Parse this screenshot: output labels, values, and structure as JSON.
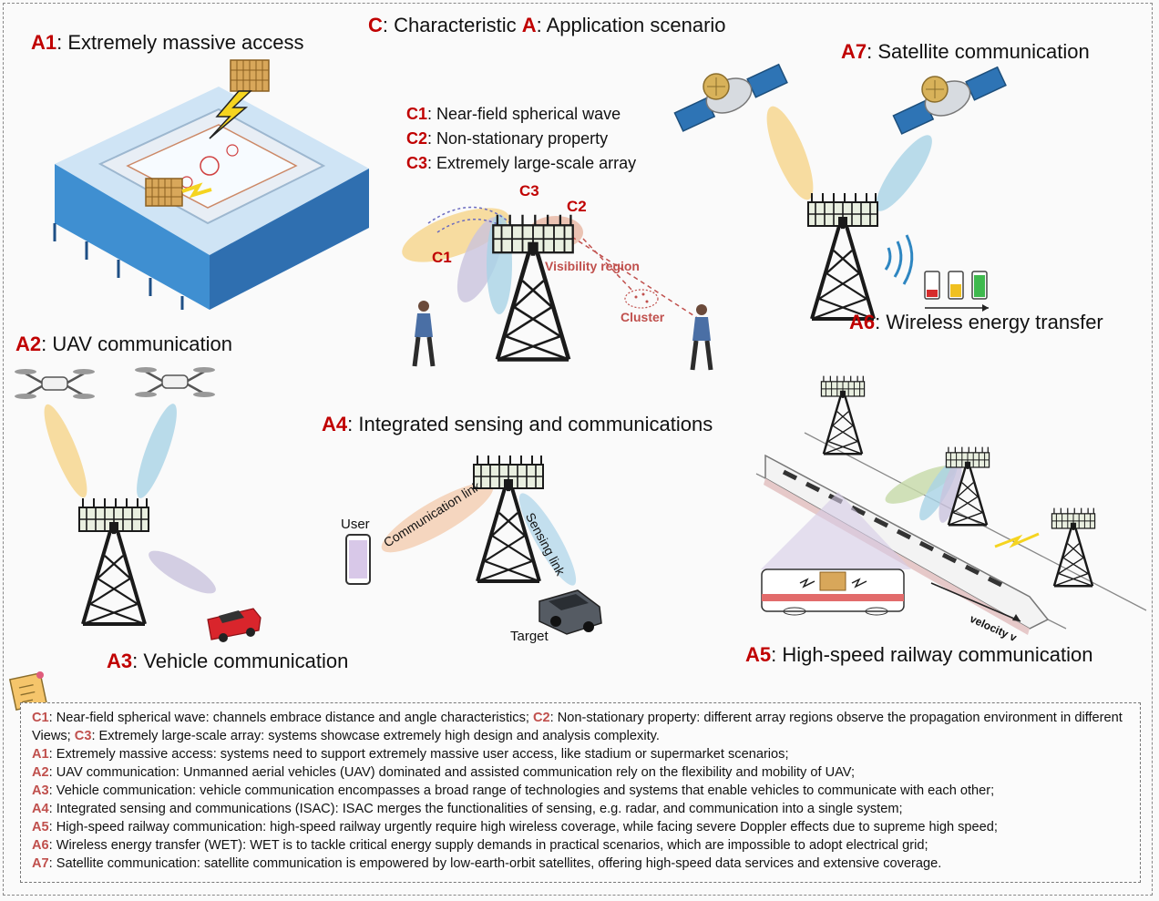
{
  "header": {
    "c_code": "C",
    "c_text": ": Characteristic ",
    "a_code": "A",
    "a_text": ": Application scenario"
  },
  "characteristics": [
    {
      "code": "C1",
      "text": ": Near-field spherical wave"
    },
    {
      "code": "C2",
      "text": ": Non-stationary property"
    },
    {
      "code": "C3",
      "text": ": Extremely large-scale array"
    }
  ],
  "scenarios": {
    "a1": {
      "code": "A1",
      "text": ": Extremely massive access"
    },
    "a2": {
      "code": "A2",
      "text": ": UAV communication"
    },
    "a3": {
      "code": "A3",
      "text": ": Vehicle communication"
    },
    "a4": {
      "code": "A4",
      "text": ": Integrated sensing and communications"
    },
    "a5": {
      "code": "A5",
      "text": ": High-speed railway communication"
    },
    "a6": {
      "code": "A6",
      "text": ": Wireless energy transfer"
    },
    "a7": {
      "code": "A7",
      "text": ": Satellite communication"
    }
  },
  "beam_labels": {
    "c1": "C1",
    "c2": "C2",
    "c3": "C3",
    "visibility_region": "Visibility region",
    "cluster": "Cluster"
  },
  "isac_labels": {
    "user": "User",
    "target": "Target",
    "communication_link": "Communication link",
    "sensing_link": "Sensing link"
  },
  "railway_labels": {
    "velocity": "velocity v"
  },
  "notes": [
    [
      {
        "code": "C1",
        "text": ": Near-field spherical wave: channels embrace distance and angle characteristics;  "
      },
      {
        "code": "C2",
        "text": ": Non-stationary property: different array regions observe the propagation environment in different Views; "
      },
      {
        "code": "C3",
        "text": ": Extremely large-scale array: systems showcase extremely high design and analysis complexity."
      }
    ],
    [
      {
        "code": "A1",
        "text": ": Extremely massive access: systems need to support extremely massive user access, like stadium or supermarket scenarios;"
      }
    ],
    [
      {
        "code": "A2",
        "text": ": UAV communication: Unmanned aerial vehicles (UAV) dominated and assisted communication rely on the flexibility and mobility of UAV;"
      }
    ],
    [
      {
        "code": "A3",
        "text": ": Vehicle communication: vehicle communication encompasses a broad range of technologies and systems that enable vehicles to communicate with each other;"
      }
    ],
    [
      {
        "code": "A4",
        "text": ": Integrated sensing and communications (ISAC): ISAC merges the functionalities of sensing, e.g. radar, and communication into a single system;"
      }
    ],
    [
      {
        "code": "A5",
        "text": ": High-speed railway communication: high-speed railway urgently require high wireless coverage, while facing severe Doppler effects due to supreme high speed;"
      }
    ],
    [
      {
        "code": "A6",
        "text": ": Wireless energy transfer (WET): WET is to tackle critical energy supply demands in practical scenarios, which are impossible to adopt electrical grid;"
      }
    ],
    [
      {
        "code": "A7",
        "text": ": Satellite communication: satellite communication is empowered by low-earth-orbit satellites, offering high-speed data services and extensive coverage."
      }
    ]
  ],
  "colors": {
    "code_red": "#c00000",
    "note_code": "#c0504d",
    "beam_yellow": "#f6d58a",
    "beam_blue": "#a9d3e6",
    "beam_purple": "#c9c3dd",
    "beam_pink": "#e8b9a6",
    "stadium_blue": "#3f8fd1",
    "tower": "#1a1a1a",
    "car_red": "#d9252c",
    "car_gray": "#555b63"
  },
  "icons": [
    "tower-icon",
    "satellite-icon",
    "drone-icon",
    "stadium-icon",
    "car-icon",
    "train-icon",
    "battery-icon",
    "phone-icon",
    "person-icon",
    "memo-icon",
    "lightning-icon",
    "wireless-waves-icon"
  ]
}
